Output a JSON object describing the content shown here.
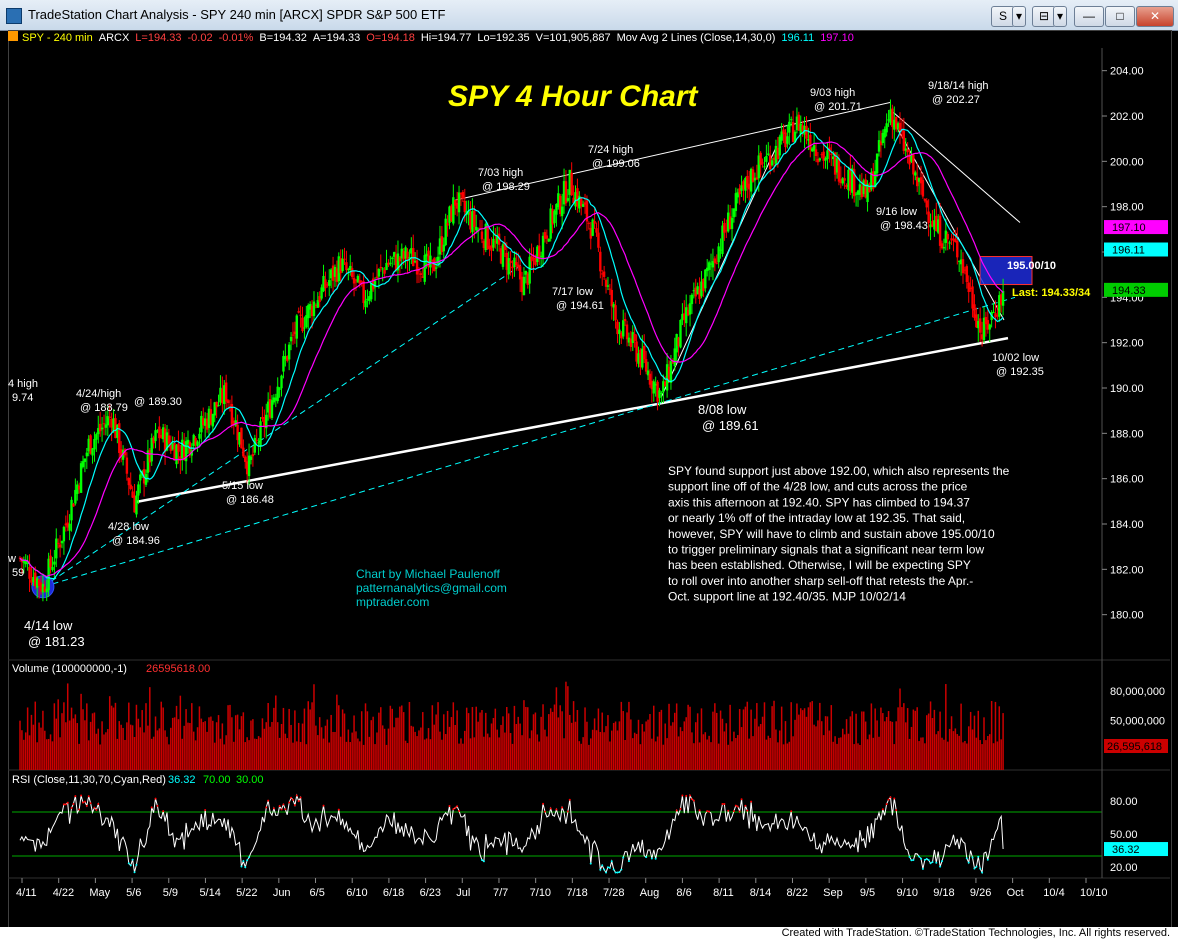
{
  "window": {
    "title": "TradeStation Chart Analysis - SPY 240 min [ARCX] SPDR S&P 500 ETF",
    "buttons": [
      "S",
      "▾",
      "⊟",
      "▾"
    ]
  },
  "status_bar": {
    "symbol": "SPY - 240 min",
    "exchange": "ARCX",
    "last": "L=194.33",
    "chg": "-0.02",
    "pct": "-0.01%",
    "bid": "B=194.32",
    "ask": "A=194.33",
    "open": "O=194.18",
    "high": "Hi=194.77",
    "low": "Lo=192.35",
    "volume": "V=101,905,887",
    "study": "Mov Avg 2 Lines (Close,14,30,0)",
    "ma1": "196.11",
    "ma2": "197.10"
  },
  "colors": {
    "up_bar": "#00ff00",
    "down_bar": "#ff0000",
    "ma_fast": "#00ffff",
    "ma_slow": "#ff00ff",
    "title": "#ffff00",
    "annotation": "#ffffff",
    "credit": "#00cccc",
    "volume": "#cc0000",
    "rsi": "#ffffff",
    "rsi_over": "#ff0000",
    "rsi_under": "#00ffff"
  },
  "chart_data": {
    "type": "candlestick",
    "title": "SPY 4 Hour Chart",
    "price_axis": {
      "ylim": [
        178,
        205
      ],
      "ticks": [
        "204.00",
        "202.00",
        "200.00",
        "198.00",
        "196.00",
        "194.00",
        "192.00",
        "190.00",
        "188.00",
        "186.00",
        "184.00",
        "182.00",
        "180.00"
      ],
      "markers": [
        {
          "label": "197.10",
          "value": 197.1,
          "color": "#ff00ff"
        },
        {
          "label": "196.11",
          "value": 196.11,
          "color": "#00ffff"
        },
        {
          "label": "194.33",
          "value": 194.33,
          "color": "#00cc00"
        }
      ]
    },
    "x_labels": [
      "4/11",
      "4/22",
      "May",
      "5/6",
      "5/9",
      "5/14",
      "5/22",
      "Jun",
      "6/5",
      "6/10",
      "6/18",
      "6/23",
      "Jul",
      "7/7",
      "7/10",
      "7/18",
      "7/28",
      "Aug",
      "8/6",
      "8/11",
      "8/14",
      "8/22",
      "Sep",
      "9/5",
      "9/10",
      "9/18",
      "9/26",
      "Oct",
      "10/4",
      "10/10"
    ],
    "series": [
      {
        "name": "SPY",
        "points": [
          {
            "x": "4/11",
            "y": 182.5
          },
          {
            "x": "4/14",
            "y": 181.23
          },
          {
            "x": "4/16",
            "y": 184.0
          },
          {
            "x": "4/22",
            "y": 187.5
          },
          {
            "x": "4/24",
            "y": 188.79
          },
          {
            "x": "4/28",
            "y": 184.96
          },
          {
            "x": "5/1",
            "y": 188.0
          },
          {
            "x": "5/6",
            "y": 187.2
          },
          {
            "x": "5/9",
            "y": 188.4
          },
          {
            "x": "5/12",
            "y": 189.8
          },
          {
            "x": "5/15",
            "y": 186.48
          },
          {
            "x": "5/22",
            "y": 189.5
          },
          {
            "x": "Jun",
            "y": 192.5
          },
          {
            "x": "6/5",
            "y": 194.0
          },
          {
            "x": "6/10",
            "y": 195.5
          },
          {
            "x": "6/13",
            "y": 194.0
          },
          {
            "x": "6/18",
            "y": 195.5
          },
          {
            "x": "6/23",
            "y": 195.8
          },
          {
            "x": "6/27",
            "y": 195.2
          },
          {
            "x": "7/03",
            "y": 198.29
          },
          {
            "x": "7/7",
            "y": 197.0
          },
          {
            "x": "7/10",
            "y": 196.0
          },
          {
            "x": "7/17",
            "y": 194.61
          },
          {
            "x": "7/18",
            "y": 197.0
          },
          {
            "x": "7/24",
            "y": 199.06
          },
          {
            "x": "7/28",
            "y": 197.0
          },
          {
            "x": "7/31",
            "y": 193.0
          },
          {
            "x": "8/6",
            "y": 191.5
          },
          {
            "x": "8/08",
            "y": 189.61
          },
          {
            "x": "8/11",
            "y": 193.0
          },
          {
            "x": "8/14",
            "y": 195.0
          },
          {
            "x": "8/18",
            "y": 197.5
          },
          {
            "x": "8/22",
            "y": 199.5
          },
          {
            "x": "8/26",
            "y": 200.5
          },
          {
            "x": "9/03",
            "y": 201.71
          },
          {
            "x": "9/5",
            "y": 200.3
          },
          {
            "x": "9/10",
            "y": 199.5
          },
          {
            "x": "9/16",
            "y": 198.43
          },
          {
            "x": "9/18/14",
            "y": 202.27
          },
          {
            "x": "9/22",
            "y": 199.5
          },
          {
            "x": "9/26",
            "y": 197.0
          },
          {
            "x": "9/30",
            "y": 196.0
          },
          {
            "x": "10/02",
            "y": 192.35
          },
          {
            "x": "Oct",
            "y": 194.33
          }
        ]
      }
    ],
    "annotations": [
      {
        "text": "9/18/14 high",
        "sub": "@ 202.27"
      },
      {
        "text": "9/03 high",
        "sub": "@ 201.71"
      },
      {
        "text": "7/24 high",
        "sub": "@ 199.06"
      },
      {
        "text": "7/03 high",
        "sub": "@ 198.29"
      },
      {
        "text": "9/16 low",
        "sub": "@ 198.43"
      },
      {
        "text": "7/17 low",
        "sub": "@ 194.61"
      },
      {
        "text": "4/24/high",
        "sub": "@ 188.79"
      },
      {
        "text": "@ 189.30",
        "sub": ""
      },
      {
        "text": "5/15 low",
        "sub": "@ 186.48"
      },
      {
        "text": "4/28 low",
        "sub": "@ 184.96"
      },
      {
        "text": "8/08 low",
        "sub": "@ 189.61"
      },
      {
        "text": "4/14 low",
        "sub": "@ 181.23"
      },
      {
        "text": "10/02 low",
        "sub": "@ 192.35"
      },
      {
        "text": "4 high",
        "sub": "9.74"
      },
      {
        "text": "w",
        "sub": "59"
      }
    ],
    "levels": {
      "resist": "195.00/10",
      "last": "Last: 194.33/34"
    },
    "commentary": [
      "SPY found support just above 192.00, which also represents the",
      "support line off of the 4/28 low, and cuts across the price",
      "axis this afternoon at 192.40.  SPY has climbed to 194.37",
      "or nearly 1% off of the intraday low at 192.35. That said,",
      "however, SPY will have to climb and sustain above 195.00/10",
      "to trigger preliminary signals that a significant near term low",
      "has been established. Otherwise, I will be expecting SPY",
      "to roll over into another sharp sell-off that retests the Apr.-",
      "Oct. support line at 192.40/35. MJP  10/02/14"
    ],
    "credit": [
      "Chart by Michael Paulenoff",
      "patternanalytics@gmail.com",
      "mptrader.com"
    ],
    "volume": {
      "label": "Volume (100000000,-1)",
      "value": "26595618.00",
      "ticks": [
        "80,000,000",
        "50,000,000"
      ],
      "marker": "26,595,618"
    },
    "rsi": {
      "label": "RSI (Close,11,30,70,Cyan,Red)",
      "value": "36.32",
      "ob": "70.00",
      "os": "30.00",
      "ticks": [
        "80.00",
        "50.00",
        "20.00"
      ],
      "marker": "36.32",
      "ylim": [
        10,
        90
      ]
    }
  },
  "footer": "Created with TradeStation. ©TradeStation Technologies, Inc. All rights reserved."
}
